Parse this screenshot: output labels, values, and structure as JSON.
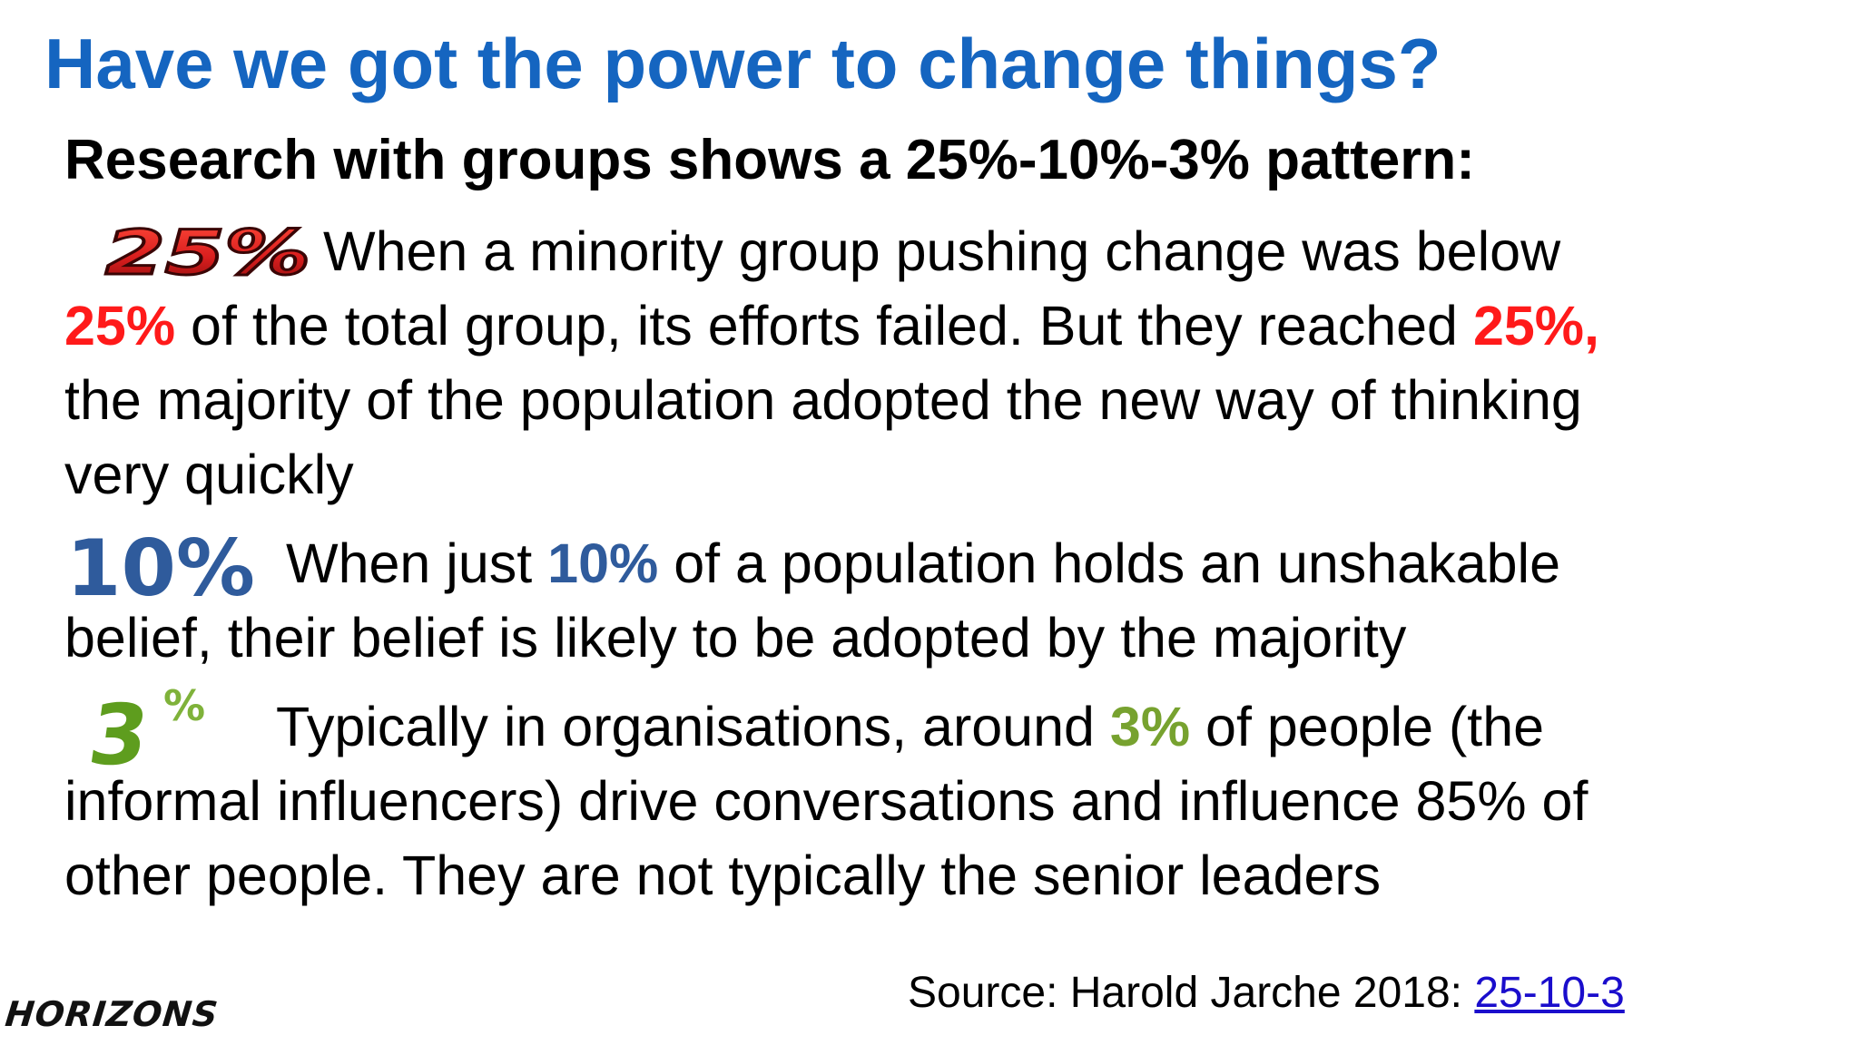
{
  "slide": {
    "title": "Have we got the power to change things?",
    "subtitle": "Research with groups shows a 25%-10%-3% pattern:",
    "badges": {
      "b25": "25%",
      "b10": "10%",
      "b3_digit": "3",
      "b3_pct": "%"
    },
    "para1": {
      "l1": "When a minority group pushing change was below",
      "l2_hl": "25%",
      "l2_mid": " of the total group, its efforts failed. But they reached ",
      "l2_hl2": "25%,",
      "l3": "the majority of the population adopted the new way of thinking",
      "l4": "very quickly"
    },
    "para2": {
      "l1_pre": "When just ",
      "l1_hl": "10%",
      "l1_post": " of a population holds an unshakable",
      "l2": "belief, their belief is likely to be adopted by the majority"
    },
    "para3": {
      "l1_pre": "Typically in organisations, around ",
      "l1_hl": "3%",
      "l1_post": " of people (the",
      "l2": "informal influencers) drive conversations and influence 85% of",
      "l3": "other people. They are not typically the senior leaders"
    },
    "source": {
      "label": "Source: Harold Jarche 2018: ",
      "link_text": "25-10-3"
    },
    "logo": "HORIZONS",
    "colors": {
      "title": "#1565c0",
      "red": "#ff1a1a",
      "blue": "#2f5b9c",
      "green": "#77a22f",
      "link": "#1a0dcc"
    }
  }
}
